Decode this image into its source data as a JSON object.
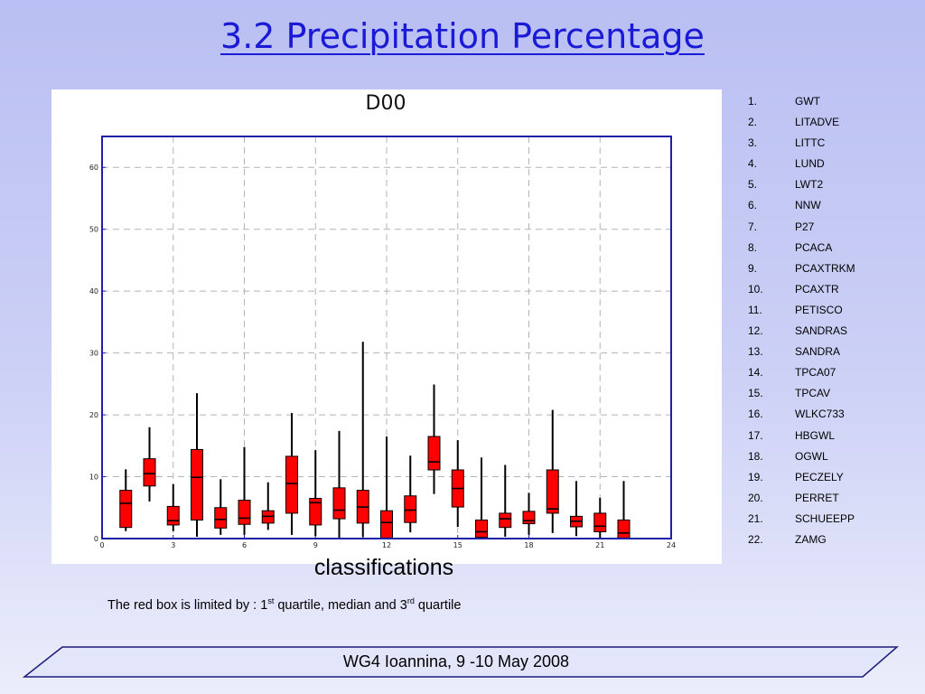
{
  "page": {
    "title": "3.2 Precipitation Percentage",
    "xlabel": "classifications",
    "note": {
      "prefix": "The red box is limited by : 1",
      "sup1": "st",
      "middle": " quartile, median and 3",
      "sup2": "rd",
      "suffix": " quartile"
    },
    "footer": "WG4 Ioannina, 9 -10 May 2008"
  },
  "legend": [
    {
      "num": "1.",
      "label": "GWT"
    },
    {
      "num": "2.",
      "label": "LITADVE"
    },
    {
      "num": "3.",
      "label": "LITTC"
    },
    {
      "num": "4.",
      "label": "LUND"
    },
    {
      "num": "5.",
      "label": "LWT2"
    },
    {
      "num": "6.",
      "label": "NNW"
    },
    {
      "num": "7.",
      "label": "P27"
    },
    {
      "num": "8.",
      "label": "PCACA"
    },
    {
      "num": "9.",
      "label": "PCAXTRKM"
    },
    {
      "num": "10.",
      "label": "PCAXTR"
    },
    {
      "num": "11.",
      "label": "PETISCO"
    },
    {
      "num": "12.",
      "label": "SANDRAS"
    },
    {
      "num": "13.",
      "label": "SANDRA"
    },
    {
      "num": "14.",
      "label": "TPCA07"
    },
    {
      "num": "15.",
      "label": "TPCAV"
    },
    {
      "num": "16.",
      "label": "WLKC733"
    },
    {
      "num": "17.",
      "label": "HBGWL"
    },
    {
      "num": "18.",
      "label": "OGWL"
    },
    {
      "num": "19.",
      "label": "PECZELY"
    },
    {
      "num": "20.",
      "label": "PERRET"
    },
    {
      "num": "21.",
      "label": "SCHUEEPP"
    },
    {
      "num": "22.",
      "label": "ZAMG"
    }
  ],
  "chart_data": {
    "type": "box",
    "title": "D00",
    "xlim": [
      0,
      24
    ],
    "ylim": [
      0,
      65
    ],
    "xticks": [
      0,
      3,
      6,
      9,
      12,
      15,
      18,
      21,
      24
    ],
    "yticks": [
      0,
      10,
      20,
      30,
      40,
      50,
      60
    ],
    "grid": true,
    "colors": {
      "box": "#ff0000",
      "axis": "#1f1fa8",
      "grid": "#b4b4b4"
    },
    "boxes": [
      {
        "x": 1,
        "whisker_low": 1.2,
        "q1": 1.8,
        "median": 5.7,
        "q3": 7.8,
        "whisker_high": 11.2
      },
      {
        "x": 2,
        "whisker_low": 6.0,
        "q1": 8.5,
        "median": 10.5,
        "q3": 12.9,
        "whisker_high": 18.0
      },
      {
        "x": 3,
        "whisker_low": 1.2,
        "q1": 2.2,
        "median": 2.9,
        "q3": 5.2,
        "whisker_high": 8.8
      },
      {
        "x": 4,
        "whisker_low": 0.3,
        "q1": 3.0,
        "median": 9.9,
        "q3": 14.4,
        "whisker_high": 23.5
      },
      {
        "x": 5,
        "whisker_low": 0.6,
        "q1": 1.7,
        "median": 3.1,
        "q3": 5.0,
        "whisker_high": 9.6
      },
      {
        "x": 6,
        "whisker_low": 0.6,
        "q1": 2.3,
        "median": 3.3,
        "q3": 6.2,
        "whisker_high": 14.8
      },
      {
        "x": 7,
        "whisker_low": 1.4,
        "q1": 2.5,
        "median": 3.6,
        "q3": 4.5,
        "whisker_high": 9.1
      },
      {
        "x": 8,
        "whisker_low": 0.6,
        "q1": 4.1,
        "median": 8.9,
        "q3": 13.3,
        "whisker_high": 20.3
      },
      {
        "x": 9,
        "whisker_low": 0.4,
        "q1": 2.2,
        "median": 5.8,
        "q3": 6.5,
        "whisker_high": 14.3
      },
      {
        "x": 10,
        "whisker_low": 0.0,
        "q1": 3.2,
        "median": 4.6,
        "q3": 8.2,
        "whisker_high": 17.4
      },
      {
        "x": 11,
        "whisker_low": 0.2,
        "q1": 2.5,
        "median": 5.1,
        "q3": 7.8,
        "whisker_high": 31.8
      },
      {
        "x": 12,
        "whisker_low": 0.0,
        "q1": 0.1,
        "median": 2.6,
        "q3": 4.5,
        "whisker_high": 16.5
      },
      {
        "x": 13,
        "whisker_low": 1.0,
        "q1": 2.6,
        "median": 4.6,
        "q3": 6.9,
        "whisker_high": 13.4
      },
      {
        "x": 14,
        "whisker_low": 7.2,
        "q1": 11.1,
        "median": 12.4,
        "q3": 16.5,
        "whisker_high": 24.9
      },
      {
        "x": 15,
        "whisker_low": 1.9,
        "q1": 5.1,
        "median": 8.1,
        "q3": 11.1,
        "whisker_high": 15.9
      },
      {
        "x": 16,
        "whisker_low": 0.0,
        "q1": 0.2,
        "median": 1.1,
        "q3": 3.0,
        "whisker_high": 13.1
      },
      {
        "x": 17,
        "whisker_low": 0.3,
        "q1": 1.8,
        "median": 3.2,
        "q3": 4.1,
        "whisker_high": 11.9
      },
      {
        "x": 18,
        "whisker_low": 0.6,
        "q1": 2.4,
        "median": 2.9,
        "q3": 4.4,
        "whisker_high": 7.4
      },
      {
        "x": 19,
        "whisker_low": 0.9,
        "q1": 4.1,
        "median": 4.8,
        "q3": 11.1,
        "whisker_high": 20.8
      },
      {
        "x": 20,
        "whisker_low": 0.4,
        "q1": 1.9,
        "median": 2.8,
        "q3": 3.6,
        "whisker_high": 9.3
      },
      {
        "x": 21,
        "whisker_low": 0.1,
        "q1": 1.1,
        "median": 2.0,
        "q3": 4.1,
        "whisker_high": 6.6
      },
      {
        "x": 22,
        "whisker_low": 0.0,
        "q1": 0.1,
        "median": 0.9,
        "q3": 3.0,
        "whisker_high": 9.3
      }
    ]
  }
}
